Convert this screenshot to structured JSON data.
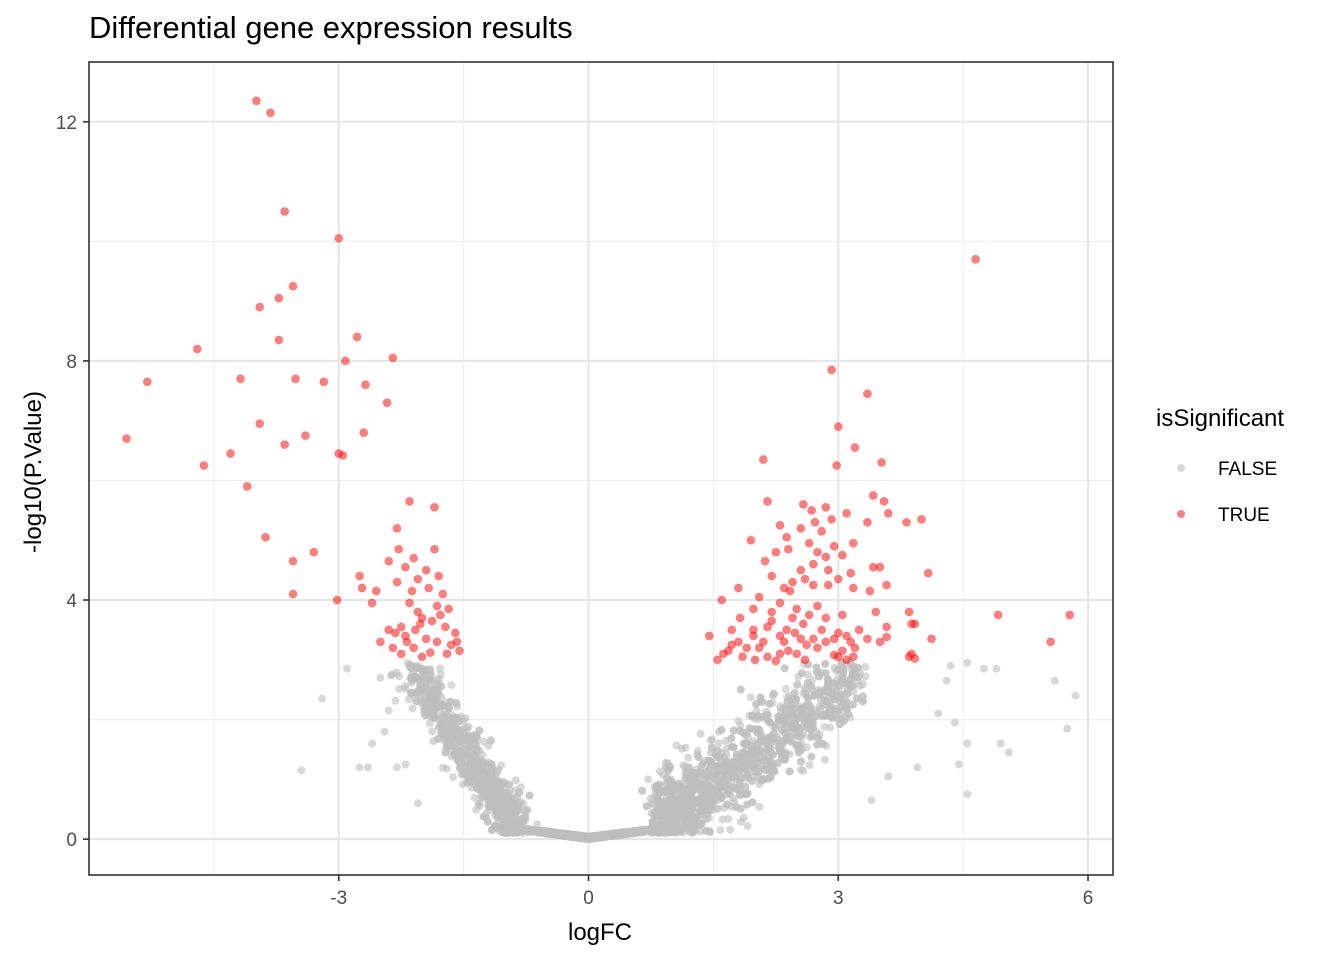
{
  "chart_data": {
    "type": "scatter",
    "title": "Differential gene expression results",
    "xlabel": "logFC",
    "ylabel": "-log10(P.Value)",
    "xlim": [
      -6,
      6.3
    ],
    "ylim": [
      -0.6,
      13
    ],
    "x_ticks": [
      -3,
      0,
      3,
      6
    ],
    "x_tick_labels": [
      "-3",
      "0",
      "3",
      "6"
    ],
    "y_ticks": [
      0,
      4,
      8,
      12
    ],
    "y_tick_labels": [
      "0",
      "4",
      "8",
      "12"
    ],
    "grid": true,
    "legend": {
      "title": "isSignificant",
      "position": "right",
      "entries": [
        {
          "label": "FALSE",
          "color": "#bebebe"
        },
        {
          "label": "TRUE",
          "color": "#ff0000"
        }
      ]
    },
    "colors": {
      "nonsignificant": "#bebebe",
      "significant": "#ff0000"
    },
    "series": [
      {
        "name": "TRUE",
        "color": "#ff0000",
        "points": [
          [
            -3.99,
            12.35
          ],
          [
            -3.82,
            12.15
          ],
          [
            -3.65,
            10.5
          ],
          [
            -3.0,
            10.05
          ],
          [
            -3.55,
            9.25
          ],
          [
            -3.72,
            9.05
          ],
          [
            -3.95,
            8.9
          ],
          [
            -4.7,
            8.2
          ],
          [
            -2.78,
            8.4
          ],
          [
            -3.72,
            8.35
          ],
          [
            -2.35,
            8.05
          ],
          [
            -2.92,
            8.0
          ],
          [
            -5.3,
            7.65
          ],
          [
            -4.18,
            7.7
          ],
          [
            -3.52,
            7.7
          ],
          [
            -3.18,
            7.65
          ],
          [
            -2.68,
            7.6
          ],
          [
            -2.42,
            7.3
          ],
          [
            -3.95,
            6.95
          ],
          [
            -2.7,
            6.8
          ],
          [
            -5.55,
            6.7
          ],
          [
            -3.4,
            6.75
          ],
          [
            -3.65,
            6.6
          ],
          [
            -4.3,
            6.45
          ],
          [
            -3.0,
            6.45
          ],
          [
            -2.95,
            6.42
          ],
          [
            -4.62,
            6.25
          ],
          [
            -4.1,
            5.9
          ],
          [
            -3.88,
            5.05
          ],
          [
            -3.55,
            4.65
          ],
          [
            -3.3,
            4.8
          ],
          [
            -3.55,
            4.1
          ],
          [
            -3.02,
            4.0
          ],
          [
            -2.15,
            5.65
          ],
          [
            -1.85,
            5.55
          ],
          [
            -2.3,
            5.2
          ],
          [
            -2.28,
            4.85
          ],
          [
            -2.1,
            4.7
          ],
          [
            -2.4,
            4.65
          ],
          [
            -1.85,
            4.85
          ],
          [
            -2.2,
            4.55
          ],
          [
            -1.95,
            4.5
          ],
          [
            -2.05,
            4.35
          ],
          [
            -2.75,
            4.4
          ],
          [
            -2.72,
            4.2
          ],
          [
            -2.3,
            4.3
          ],
          [
            -1.8,
            4.4
          ],
          [
            -2.12,
            4.15
          ],
          [
            -1.92,
            4.2
          ],
          [
            -2.55,
            4.15
          ],
          [
            -1.75,
            4.1
          ],
          [
            -2.15,
            3.95
          ],
          [
            -1.82,
            3.9
          ],
          [
            -2.6,
            3.95
          ],
          [
            -2.05,
            3.8
          ],
          [
            -1.68,
            3.85
          ],
          [
            -2.0,
            3.7
          ],
          [
            -1.88,
            3.65
          ],
          [
            -2.25,
            3.55
          ],
          [
            -2.08,
            3.5
          ],
          [
            -1.72,
            3.55
          ],
          [
            -2.4,
            3.5
          ],
          [
            -1.6,
            3.45
          ],
          [
            -2.2,
            3.4
          ],
          [
            -1.95,
            3.35
          ],
          [
            -2.5,
            3.3
          ],
          [
            -1.82,
            3.3
          ],
          [
            -2.35,
            3.2
          ],
          [
            -2.1,
            3.2
          ],
          [
            -1.65,
            3.25
          ],
          [
            -1.55,
            3.15
          ],
          [
            -2.25,
            3.1
          ],
          [
            -1.9,
            3.12
          ],
          [
            -1.7,
            3.1
          ],
          [
            -2.0,
            3.05
          ],
          [
            -2.18,
            3.3
          ],
          [
            -1.58,
            3.3
          ],
          [
            -2.32,
            3.45
          ],
          [
            -1.78,
            3.75
          ],
          [
            -2.02,
            3.6
          ],
          [
            4.65,
            9.7
          ],
          [
            2.92,
            7.85
          ],
          [
            3.35,
            7.45
          ],
          [
            3.0,
            6.9
          ],
          [
            3.2,
            6.55
          ],
          [
            2.1,
            6.35
          ],
          [
            3.52,
            6.3
          ],
          [
            2.98,
            6.25
          ],
          [
            2.15,
            5.65
          ],
          [
            3.42,
            5.75
          ],
          [
            3.55,
            5.65
          ],
          [
            2.58,
            5.6
          ],
          [
            2.68,
            5.5
          ],
          [
            2.72,
            5.3
          ],
          [
            2.85,
            5.55
          ],
          [
            3.1,
            5.45
          ],
          [
            2.92,
            5.35
          ],
          [
            3.35,
            5.3
          ],
          [
            3.6,
            5.45
          ],
          [
            4.0,
            5.35
          ],
          [
            3.82,
            5.3
          ],
          [
            2.3,
            5.25
          ],
          [
            2.55,
            5.2
          ],
          [
            2.8,
            5.15
          ],
          [
            2.38,
            5.05
          ],
          [
            1.95,
            5.0
          ],
          [
            2.65,
            4.95
          ],
          [
            3.18,
            4.95
          ],
          [
            2.95,
            4.9
          ],
          [
            2.4,
            4.85
          ],
          [
            2.25,
            4.8
          ],
          [
            2.75,
            4.8
          ],
          [
            2.85,
            4.72
          ],
          [
            3.05,
            4.75
          ],
          [
            2.12,
            4.65
          ],
          [
            2.7,
            4.6
          ],
          [
            3.5,
            4.55
          ],
          [
            3.42,
            4.55
          ],
          [
            2.55,
            4.5
          ],
          [
            2.88,
            4.5
          ],
          [
            3.15,
            4.45
          ],
          [
            2.2,
            4.4
          ],
          [
            2.6,
            4.35
          ],
          [
            2.88,
            4.25
          ],
          [
            2.45,
            4.3
          ],
          [
            2.35,
            4.2
          ],
          [
            2.42,
            4.15
          ],
          [
            2.7,
            4.25
          ],
          [
            3.0,
            4.35
          ],
          [
            3.18,
            4.2
          ],
          [
            3.38,
            4.15
          ],
          [
            3.58,
            4.25
          ],
          [
            4.08,
            4.45
          ],
          [
            1.8,
            4.2
          ],
          [
            2.05,
            4.05
          ],
          [
            1.6,
            4.0
          ],
          [
            2.3,
            3.95
          ],
          [
            2.5,
            3.85
          ],
          [
            2.75,
            3.9
          ],
          [
            2.65,
            3.75
          ],
          [
            1.98,
            3.85
          ],
          [
            2.2,
            3.8
          ],
          [
            2.85,
            3.7
          ],
          [
            3.05,
            3.75
          ],
          [
            3.45,
            3.8
          ],
          [
            3.85,
            3.8
          ],
          [
            1.82,
            3.7
          ],
          [
            2.45,
            3.7
          ],
          [
            2.58,
            3.6
          ],
          [
            2.15,
            3.55
          ],
          [
            1.98,
            3.5
          ],
          [
            2.38,
            3.5
          ],
          [
            2.8,
            3.5
          ],
          [
            3.0,
            3.45
          ],
          [
            3.25,
            3.5
          ],
          [
            3.58,
            3.55
          ],
          [
            3.88,
            3.6
          ],
          [
            3.92,
            3.6
          ],
          [
            1.72,
            3.5
          ],
          [
            1.98,
            3.4
          ],
          [
            2.3,
            3.4
          ],
          [
            2.55,
            3.35
          ],
          [
            2.7,
            3.35
          ],
          [
            2.95,
            3.35
          ],
          [
            3.1,
            3.4
          ],
          [
            3.35,
            3.35
          ],
          [
            3.58,
            3.38
          ],
          [
            4.12,
            3.35
          ],
          [
            1.45,
            3.4
          ],
          [
            1.8,
            3.3
          ],
          [
            2.1,
            3.3
          ],
          [
            2.35,
            3.3
          ],
          [
            2.62,
            3.25
          ],
          [
            2.85,
            3.3
          ],
          [
            3.15,
            3.3
          ],
          [
            3.5,
            3.3
          ],
          [
            4.92,
            3.75
          ],
          [
            5.78,
            3.75
          ],
          [
            5.55,
            3.3
          ],
          [
            1.72,
            3.25
          ],
          [
            1.9,
            3.2
          ],
          [
            2.05,
            3.2
          ],
          [
            2.4,
            3.15
          ],
          [
            2.75,
            3.2
          ],
          [
            3.05,
            3.15
          ],
          [
            3.2,
            3.2
          ],
          [
            3.88,
            3.1
          ],
          [
            1.62,
            3.1
          ],
          [
            1.85,
            3.05
          ],
          [
            2.15,
            3.05
          ],
          [
            2.3,
            3.1
          ],
          [
            2.5,
            3.1
          ],
          [
            3.0,
            3.05
          ],
          [
            3.18,
            3.05
          ],
          [
            3.85,
            3.05
          ],
          [
            3.92,
            3.02
          ],
          [
            1.55,
            3.0
          ],
          [
            2.0,
            3.0
          ],
          [
            2.25,
            2.98
          ],
          [
            2.6,
            3.0
          ],
          [
            2.95,
            3.08
          ],
          [
            3.1,
            3.0
          ],
          [
            1.68,
            3.15
          ],
          [
            2.48,
            3.45
          ],
          [
            2.2,
            3.65
          ]
        ]
      }
    ]
  }
}
